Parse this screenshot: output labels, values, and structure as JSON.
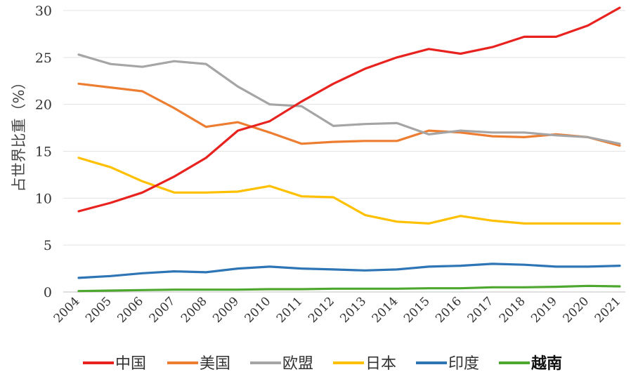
{
  "chart_data": {
    "type": "line",
    "title": "",
    "xlabel": "",
    "ylabel": "占世界比重（%）",
    "x": [
      "2004",
      "2005",
      "2006",
      "2007",
      "2008",
      "2009",
      "2010",
      "2011",
      "2012",
      "2013",
      "2014",
      "2015",
      "2016",
      "2017",
      "2018",
      "2019",
      "2020",
      "2021"
    ],
    "ylim": [
      0,
      30
    ],
    "yticks": [
      "0",
      "5",
      "10",
      "15",
      "20",
      "25",
      "30"
    ],
    "grid": true,
    "legend_position": "bottom",
    "series": [
      {
        "name": "中国",
        "color": "#e8231f",
        "values": [
          8.6,
          9.5,
          10.6,
          12.3,
          14.3,
          17.2,
          18.2,
          20.3,
          22.2,
          23.8,
          25.0,
          25.9,
          25.4,
          26.1,
          27.2,
          27.2,
          28.4,
          30.3
        ]
      },
      {
        "name": "美国",
        "color": "#ed7d31",
        "values": [
          22.2,
          21.8,
          21.4,
          19.6,
          17.6,
          18.1,
          17.0,
          15.8,
          16.0,
          16.1,
          16.1,
          17.2,
          17.0,
          16.6,
          16.5,
          16.8,
          16.5,
          15.6
        ]
      },
      {
        "name": "欧盟",
        "color": "#a5a5a5",
        "values": [
          25.3,
          24.3,
          24.0,
          24.6,
          24.3,
          21.9,
          20.0,
          19.8,
          17.7,
          17.9,
          18.0,
          16.8,
          17.2,
          17.0,
          17.0,
          16.7,
          16.5,
          15.8
        ]
      },
      {
        "name": "日本",
        "color": "#ffc000",
        "values": [
          14.3,
          13.3,
          11.8,
          10.6,
          10.6,
          10.7,
          11.3,
          10.2,
          10.1,
          8.2,
          7.5,
          7.3,
          8.1,
          7.6,
          7.3,
          7.3,
          7.3,
          7.3
        ]
      },
      {
        "name": "印度",
        "color": "#2e75b6",
        "values": [
          1.5,
          1.7,
          2.0,
          2.2,
          2.1,
          2.5,
          2.7,
          2.5,
          2.4,
          2.3,
          2.4,
          2.7,
          2.8,
          3.0,
          2.9,
          2.7,
          2.7,
          2.8
        ]
      },
      {
        "name": "越南",
        "color": "#4ea72e",
        "values": [
          0.1,
          0.15,
          0.2,
          0.25,
          0.25,
          0.25,
          0.3,
          0.3,
          0.35,
          0.35,
          0.35,
          0.4,
          0.4,
          0.5,
          0.5,
          0.55,
          0.65,
          0.6
        ]
      }
    ]
  }
}
